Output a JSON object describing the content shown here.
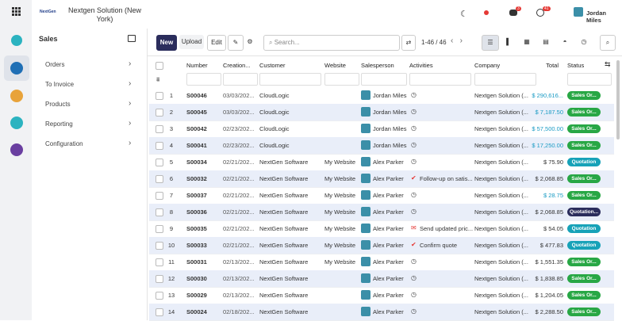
{
  "topbar": {
    "company": "Nextgen Solution (New York)",
    "chat_badge": "3",
    "activity_badge": "41",
    "user": "Jordan Miles"
  },
  "sidebar": {
    "title": "Sales",
    "items": [
      "Orders",
      "To Invoice",
      "Products",
      "Reporting",
      "Configuration"
    ]
  },
  "toolbar": {
    "new": "New",
    "upload": "Upload",
    "edit": "Edit",
    "search": "Search...",
    "pager": "1-46 / 46"
  },
  "table": {
    "columns": [
      "Number",
      "Creation...",
      "Customer",
      "Website",
      "Salesperson",
      "Activities",
      "Company",
      "Total",
      "Status"
    ],
    "rows": [
      {
        "index": "1",
        "number": "S00046",
        "created": "03/03/202...",
        "customer": "CloudLogic",
        "salesperson": "Jordan Miles",
        "activity_icon": "clock",
        "company": "Nextgen Solution (...",
        "total": "$ 290,616...",
        "total_color": "#1a9bc4",
        "status": "Sales Or...",
        "status_color": "#28a745"
      },
      {
        "index": "2",
        "number": "S00045",
        "created": "03/03/202...",
        "customer": "CloudLogic",
        "salesperson": "Jordan Miles",
        "activity_icon": "clock",
        "company": "Nextgen Solution (...",
        "total": "$ 7,187.50",
        "total_color": "#1a9bc4",
        "status": "Sales Or...",
        "status_color": "#28a745"
      },
      {
        "index": "3",
        "number": "S00042",
        "created": "02/23/202...",
        "customer": "CloudLogic",
        "salesperson": "Jordan Miles",
        "activity_icon": "clock",
        "company": "Nextgen Solution (...",
        "total": "$ 57,500.00",
        "total_color": "#1a9bc4",
        "status": "Sales Or...",
        "status_color": "#28a745"
      },
      {
        "index": "4",
        "number": "S00041",
        "created": "02/23/202...",
        "customer": "CloudLogic",
        "salesperson": "Jordan Miles",
        "activity_icon": "clock",
        "company": "Nextgen Solution (...",
        "total": "$ 17,250.00",
        "total_color": "#1a9bc4",
        "status": "Sales Or...",
        "status_color": "#28a745"
      },
      {
        "index": "5",
        "number": "S00034",
        "created": "02/21/202...",
        "customer": "NextGen Software",
        "website": "My Website",
        "salesperson": "Alex Parker",
        "activity_icon": "clock",
        "company": "Nextgen Solution (...",
        "total": "$ 75.90",
        "total_color": "#333",
        "status": "Quotation",
        "status_color": "#17a2b8"
      },
      {
        "index": "6",
        "number": "S00032",
        "created": "02/21/202...",
        "customer": "NextGen Software",
        "website": "My Website",
        "salesperson": "Alex Parker",
        "activity_icon": "check",
        "activity": "Follow-up on satis...",
        "company": "Nextgen Solution (...",
        "total": "$ 2,068.85",
        "total_color": "#333",
        "status": "Sales Or...",
        "status_color": "#28a745"
      },
      {
        "index": "7",
        "number": "S00037",
        "created": "02/21/202...",
        "customer": "NextGen Software",
        "website": "My Website",
        "salesperson": "Alex Parker",
        "activity_icon": "clock",
        "company": "Nextgen Solution (...",
        "total": "$ 28.75",
        "total_color": "#1a9bc4",
        "status": "Sales Or...",
        "status_color": "#28a745"
      },
      {
        "index": "8",
        "number": "S00036",
        "created": "02/21/202...",
        "customer": "NextGen Software",
        "website": "My Website",
        "salesperson": "Alex Parker",
        "activity_icon": "clock",
        "company": "Nextgen Solution (...",
        "total": "$ 2,068.85",
        "total_color": "#333",
        "status": "Quotation...",
        "status_color": "#2b2d5c"
      },
      {
        "index": "9",
        "number": "S00035",
        "created": "02/21/202...",
        "customer": "NextGen Software",
        "website": "My Website",
        "salesperson": "Alex Parker",
        "activity_icon": "mail",
        "activity": "Send updated pric...",
        "company": "Nextgen Solution (...",
        "total": "$ 54.05",
        "total_color": "#333",
        "status": "Quotation",
        "status_color": "#17a2b8"
      },
      {
        "index": "10",
        "number": "S00033",
        "created": "02/21/202...",
        "customer": "NextGen Software",
        "website": "My Website",
        "salesperson": "Alex Parker",
        "activity_icon": "check",
        "activity": "Confirm quote",
        "company": "Nextgen Solution (...",
        "total": "$ 477.83",
        "total_color": "#333",
        "status": "Quotation",
        "status_color": "#17a2b8"
      },
      {
        "index": "11",
        "number": "S00031",
        "created": "02/13/202...",
        "customer": "NextGen Software",
        "website": "My Website",
        "salesperson": "Alex Parker",
        "activity_icon": "clock",
        "company": "Nextgen Solution (...",
        "total": "$ 1,551.35",
        "total_color": "#333",
        "status": "Sales Or...",
        "status_color": "#28a745"
      },
      {
        "index": "12",
        "number": "S00030",
        "created": "02/13/202...",
        "customer": "NextGen Software",
        "salesperson": "Alex Parker",
        "activity_icon": "clock",
        "company": "Nextgen Solution (...",
        "total": "$ 1,838.85",
        "total_color": "#333",
        "status": "Sales Or...",
        "status_color": "#28a745"
      },
      {
        "index": "13",
        "number": "S00029",
        "created": "02/13/202...",
        "customer": "NextGen Software",
        "salesperson": "Alex Parker",
        "activity_icon": "clock",
        "company": "Nextgen Solution (...",
        "total": "$ 1,204.05",
        "total_color": "#333",
        "status": "Sales Or...",
        "status_color": "#28a745"
      },
      {
        "index": "14",
        "number": "S00024",
        "created": "02/18/202...",
        "customer": "NextGen Software",
        "salesperson": "Alex Parker",
        "activity_icon": "clock",
        "company": "Nextgen Solution (...",
        "total": "$ 2,288.50",
        "total_color": "#333",
        "status": "Sales Or...",
        "status_color": "#28a745"
      }
    ]
  }
}
